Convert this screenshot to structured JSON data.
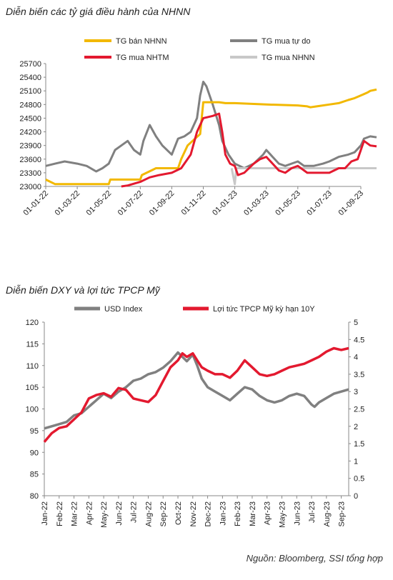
{
  "header": {
    "title1": "Diễn biến các tỷ giá điều hành của NHNN",
    "title2": "Diễn biến DXY và lợi tức TPCP Mỹ"
  },
  "footer": {
    "source": "Nguồn: Bloomberg, SSI tổng hợp"
  },
  "chart_data": [
    {
      "type": "line",
      "title": "Diễn biến các tỷ giá điều hành của NHNN",
      "ylim": [
        23000,
        25700
      ],
      "yticks": [
        23000,
        23300,
        23600,
        23900,
        24200,
        24500,
        24800,
        25100,
        25400,
        25700
      ],
      "categories": [
        "01-01-22",
        "01-03-22",
        "01-05-22",
        "01-07-22",
        "01-09-22",
        "01-11-22",
        "01-01-23",
        "01-03-23",
        "01-05-23",
        "01-07-23",
        "01-09-23"
      ],
      "series": [
        {
          "name": "TG bán NHNN",
          "color": "#f2b800",
          "points": [
            [
              0,
              23150
            ],
            [
              0.3,
              23050
            ],
            [
              1,
              23050
            ],
            [
              2,
              23050
            ],
            [
              2.05,
              23150
            ],
            [
              3,
              23150
            ],
            [
              3.05,
              23250
            ],
            [
              3.5,
              23400
            ],
            [
              4,
              23400
            ],
            [
              4.2,
              23400
            ],
            [
              4.3,
              23600
            ],
            [
              4.5,
              23900
            ],
            [
              4.9,
              24150
            ],
            [
              5.0,
              24850
            ],
            [
              5.5,
              24850
            ],
            [
              5.7,
              24830
            ],
            [
              6,
              24830
            ],
            [
              7,
              24800
            ],
            [
              8,
              24780
            ],
            [
              8.3,
              24760
            ],
            [
              8.4,
              24740
            ],
            [
              8.6,
              24760
            ],
            [
              9,
              24800
            ],
            [
              9.3,
              24830
            ],
            [
              9.6,
              24900
            ],
            [
              9.8,
              24940
            ],
            [
              10,
              25000
            ],
            [
              10.2,
              25060
            ],
            [
              10.3,
              25100
            ],
            [
              10.5,
              25130
            ]
          ]
        },
        {
          "name": "TG mua tự do",
          "color": "#808080",
          "points": [
            [
              0,
              23450
            ],
            [
              0.3,
              23500
            ],
            [
              0.6,
              23550
            ],
            [
              1,
              23500
            ],
            [
              1.3,
              23450
            ],
            [
              1.6,
              23330
            ],
            [
              1.8,
              23400
            ],
            [
              2,
              23500
            ],
            [
              2.2,
              23800
            ],
            [
              2.4,
              23900
            ],
            [
              2.6,
              24000
            ],
            [
              2.8,
              23800
            ],
            [
              3,
              23700
            ],
            [
              3.1,
              24000
            ],
            [
              3.3,
              24350
            ],
            [
              3.5,
              24100
            ],
            [
              3.7,
              23900
            ],
            [
              4,
              23700
            ],
            [
              4.2,
              24050
            ],
            [
              4.4,
              24100
            ],
            [
              4.6,
              24200
            ],
            [
              4.8,
              24500
            ],
            [
              4.9,
              25000
            ],
            [
              5.0,
              25300
            ],
            [
              5.1,
              25200
            ],
            [
              5.3,
              24800
            ],
            [
              5.5,
              24350
            ],
            [
              5.6,
              24000
            ],
            [
              5.8,
              23700
            ],
            [
              6,
              23500
            ],
            [
              6.3,
              23400
            ],
            [
              6.6,
              23500
            ],
            [
              6.9,
              23700
            ],
            [
              7.0,
              23800
            ],
            [
              7.2,
              23650
            ],
            [
              7.4,
              23500
            ],
            [
              7.6,
              23450
            ],
            [
              7.8,
              23500
            ],
            [
              8,
              23550
            ],
            [
              8.2,
              23450
            ],
            [
              8.5,
              23450
            ],
            [
              8.8,
              23500
            ],
            [
              9,
              23550
            ],
            [
              9.3,
              23650
            ],
            [
              9.6,
              23700
            ],
            [
              9.8,
              23750
            ],
            [
              10,
              23900
            ],
            [
              10.1,
              24050
            ],
            [
              10.3,
              24100
            ],
            [
              10.5,
              24080
            ]
          ]
        },
        {
          "name": "TG mua NHTM",
          "color": "#e3192f",
          "points": [
            [
              2.4,
              23000
            ],
            [
              2.6,
              23020
            ],
            [
              3,
              23100
            ],
            [
              3.3,
              23200
            ],
            [
              3.6,
              23250
            ],
            [
              4,
              23300
            ],
            [
              4.3,
              23400
            ],
            [
              4.6,
              23700
            ],
            [
              4.8,
              24200
            ],
            [
              5.0,
              24500
            ],
            [
              5.3,
              24550
            ],
            [
              5.5,
              24600
            ],
            [
              5.6,
              24200
            ],
            [
              5.7,
              23700
            ],
            [
              5.85,
              23500
            ],
            [
              6,
              23450
            ],
            [
              6.1,
              23250
            ],
            [
              6.3,
              23300
            ],
            [
              6.6,
              23500
            ],
            [
              6.8,
              23600
            ],
            [
              7.0,
              23650
            ],
            [
              7.2,
              23500
            ],
            [
              7.4,
              23350
            ],
            [
              7.6,
              23300
            ],
            [
              7.8,
              23400
            ],
            [
              8,
              23450
            ],
            [
              8.3,
              23300
            ],
            [
              8.5,
              23300
            ],
            [
              8.8,
              23300
            ],
            [
              9,
              23300
            ],
            [
              9.3,
              23400
            ],
            [
              9.5,
              23400
            ],
            [
              9.7,
              23550
            ],
            [
              9.9,
              23600
            ],
            [
              10.1,
              24000
            ],
            [
              10.3,
              23900
            ],
            [
              10.5,
              23880
            ]
          ]
        },
        {
          "name": "TG mua NHNN",
          "color": "#c8c8c8",
          "points": [
            [
              5.9,
              23400
            ],
            [
              6.0,
              23050
            ],
            [
              6.05,
              23400
            ],
            [
              6.5,
              23400
            ],
            [
              7,
              23400
            ],
            [
              8,
              23400
            ],
            [
              9,
              23400
            ],
            [
              10,
              23400
            ],
            [
              10.5,
              23400
            ]
          ]
        }
      ]
    },
    {
      "type": "line",
      "title": "Diễn biến DXY và lợi tức TPCP Mỹ",
      "categories": [
        "Jan-22",
        "Feb-22",
        "Mar-22",
        "Apr-22",
        "May-22",
        "Jun-22",
        "Jul-22",
        "Aug-22",
        "Sep-22",
        "Oct-22",
        "Nov-22",
        "Dec-22",
        "Jan-23",
        "Feb-23",
        "Mar-23",
        "Apr-23",
        "May-23",
        "Jun-23",
        "Jul-23",
        "Aug-23",
        "Sep-23"
      ],
      "ylim_left": [
        80,
        120
      ],
      "yticks_left": [
        80,
        85,
        90,
        95,
        100,
        105,
        110,
        115,
        120
      ],
      "ylim_right": [
        0,
        5
      ],
      "yticks_right": [
        "0",
        "0.5",
        "1",
        "1.5",
        "2",
        "2.5",
        "3",
        "3.5",
        "4",
        "4.5",
        "5"
      ],
      "series": [
        {
          "name": "USD Index",
          "axis": "left",
          "color": "#808080",
          "points": [
            [
              0,
              95.5
            ],
            [
              0.5,
              96
            ],
            [
              1,
              96.5
            ],
            [
              1.5,
              97
            ],
            [
              2,
              98.5
            ],
            [
              2.5,
              99
            ],
            [
              3,
              100.5
            ],
            [
              3.5,
              102
            ],
            [
              4,
              103.5
            ],
            [
              4.5,
              102.5
            ],
            [
              5,
              104
            ],
            [
              5.5,
              105
            ],
            [
              6,
              106.5
            ],
            [
              6.5,
              107
            ],
            [
              7,
              108
            ],
            [
              7.5,
              108.5
            ],
            [
              8,
              109.5
            ],
            [
              8.5,
              111
            ],
            [
              9,
              113
            ],
            [
              9.3,
              112
            ],
            [
              9.6,
              111
            ],
            [
              10,
              112.5
            ],
            [
              10.3,
              110
            ],
            [
              10.6,
              107
            ],
            [
              11,
              105
            ],
            [
              11.5,
              104
            ],
            [
              12,
              103
            ],
            [
              12.5,
              102
            ],
            [
              13,
              103.5
            ],
            [
              13.5,
              105
            ],
            [
              14,
              104.5
            ],
            [
              14.5,
              103
            ],
            [
              15,
              102
            ],
            [
              15.5,
              101.5
            ],
            [
              16,
              102
            ],
            [
              16.5,
              103
            ],
            [
              17,
              103.5
            ],
            [
              17.5,
              103
            ],
            [
              18,
              101
            ],
            [
              18.2,
              100.5
            ],
            [
              18.5,
              101.5
            ],
            [
              19,
              102.5
            ],
            [
              19.5,
              103.5
            ],
            [
              20,
              104
            ],
            [
              20.5,
              104.5
            ]
          ]
        },
        {
          "name": "Lợi tức TPCP Mỹ kỳ hạn 10Y",
          "axis": "right",
          "color": "#e3192f",
          "points": [
            [
              0,
              1.55
            ],
            [
              0.5,
              1.8
            ],
            [
              1,
              1.95
            ],
            [
              1.5,
              2.0
            ],
            [
              2,
              2.2
            ],
            [
              2.5,
              2.4
            ],
            [
              3,
              2.8
            ],
            [
              3.5,
              2.9
            ],
            [
              4,
              2.95
            ],
            [
              4.5,
              2.85
            ],
            [
              5,
              3.1
            ],
            [
              5.5,
              3.05
            ],
            [
              6,
              2.8
            ],
            [
              6.5,
              2.75
            ],
            [
              7,
              2.7
            ],
            [
              7.5,
              2.9
            ],
            [
              8,
              3.3
            ],
            [
              8.5,
              3.7
            ],
            [
              9,
              3.9
            ],
            [
              9.3,
              4.1
            ],
            [
              9.6,
              4.0
            ],
            [
              10,
              4.1
            ],
            [
              10.3,
              3.9
            ],
            [
              10.6,
              3.7
            ],
            [
              11,
              3.6
            ],
            [
              11.5,
              3.5
            ],
            [
              12,
              3.5
            ],
            [
              12.5,
              3.4
            ],
            [
              13,
              3.6
            ],
            [
              13.5,
              3.9
            ],
            [
              14,
              3.7
            ],
            [
              14.5,
              3.5
            ],
            [
              15,
              3.45
            ],
            [
              15.5,
              3.5
            ],
            [
              16,
              3.6
            ],
            [
              16.5,
              3.7
            ],
            [
              17,
              3.75
            ],
            [
              17.5,
              3.8
            ],
            [
              18,
              3.9
            ],
            [
              18.5,
              4.0
            ],
            [
              19,
              4.15
            ],
            [
              19.5,
              4.25
            ],
            [
              20,
              4.2
            ],
            [
              20.5,
              4.25
            ]
          ]
        }
      ]
    }
  ]
}
